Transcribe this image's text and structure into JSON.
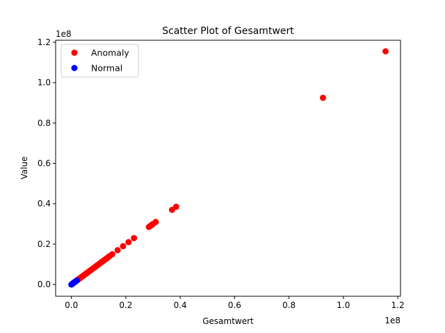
{
  "chart_data": {
    "type": "scatter",
    "title": "Scatter Plot of Gesamtwert",
    "xlabel": "Gesamtwert",
    "ylabel": "Value",
    "x_offset_label": "1e8",
    "y_offset_label": "1e8",
    "xlim": [
      -0.058,
      1.21
    ],
    "ylim": [
      -0.058,
      1.21
    ],
    "x_ticks": [
      0.0,
      0.2,
      0.4,
      0.6,
      0.8,
      1.0,
      1.2
    ],
    "x_tick_labels": [
      "0.0",
      "0.2",
      "0.4",
      "0.6",
      "0.8",
      "1.0",
      "1.2"
    ],
    "y_ticks": [
      0.0,
      0.2,
      0.4,
      0.6,
      0.8,
      1.0,
      1.2
    ],
    "y_tick_labels": [
      "0.0",
      "0.2",
      "0.4",
      "0.6",
      "0.8",
      "1.0",
      "1.2"
    ],
    "grid": false,
    "legend_position": "top-left",
    "series": [
      {
        "name": "Anomaly",
        "color": "#ff0000",
        "points": [
          [
            0.02,
            0.02
          ],
          [
            0.025,
            0.025
          ],
          [
            0.03,
            0.03
          ],
          [
            0.035,
            0.035
          ],
          [
            0.04,
            0.04
          ],
          [
            0.045,
            0.045
          ],
          [
            0.05,
            0.05
          ],
          [
            0.055,
            0.055
          ],
          [
            0.06,
            0.06
          ],
          [
            0.065,
            0.065
          ],
          [
            0.07,
            0.07
          ],
          [
            0.075,
            0.075
          ],
          [
            0.08,
            0.08
          ],
          [
            0.085,
            0.085
          ],
          [
            0.09,
            0.09
          ],
          [
            0.095,
            0.095
          ],
          [
            0.1,
            0.1
          ],
          [
            0.105,
            0.105
          ],
          [
            0.11,
            0.11
          ],
          [
            0.115,
            0.115
          ],
          [
            0.12,
            0.12
          ],
          [
            0.125,
            0.125
          ],
          [
            0.13,
            0.13
          ],
          [
            0.135,
            0.135
          ],
          [
            0.14,
            0.14
          ],
          [
            0.15,
            0.15
          ],
          [
            0.17,
            0.17
          ],
          [
            0.19,
            0.19
          ],
          [
            0.21,
            0.21
          ],
          [
            0.23,
            0.23
          ],
          [
            0.285,
            0.285
          ],
          [
            0.29,
            0.29
          ],
          [
            0.295,
            0.295
          ],
          [
            0.3,
            0.3
          ],
          [
            0.31,
            0.31
          ],
          [
            0.37,
            0.37
          ],
          [
            0.385,
            0.385
          ],
          [
            0.925,
            0.925
          ],
          [
            1.155,
            1.155
          ]
        ]
      },
      {
        "name": "Normal",
        "color": "#0000ff",
        "points": [
          [
            0.0,
            0.0
          ],
          [
            0.002,
            0.002
          ],
          [
            0.004,
            0.004
          ],
          [
            0.006,
            0.006
          ],
          [
            0.008,
            0.008
          ],
          [
            0.01,
            0.01
          ],
          [
            0.012,
            0.012
          ],
          [
            0.014,
            0.014
          ],
          [
            0.016,
            0.016
          ],
          [
            0.018,
            0.018
          ],
          [
            0.02,
            0.02
          ]
        ]
      }
    ]
  }
}
